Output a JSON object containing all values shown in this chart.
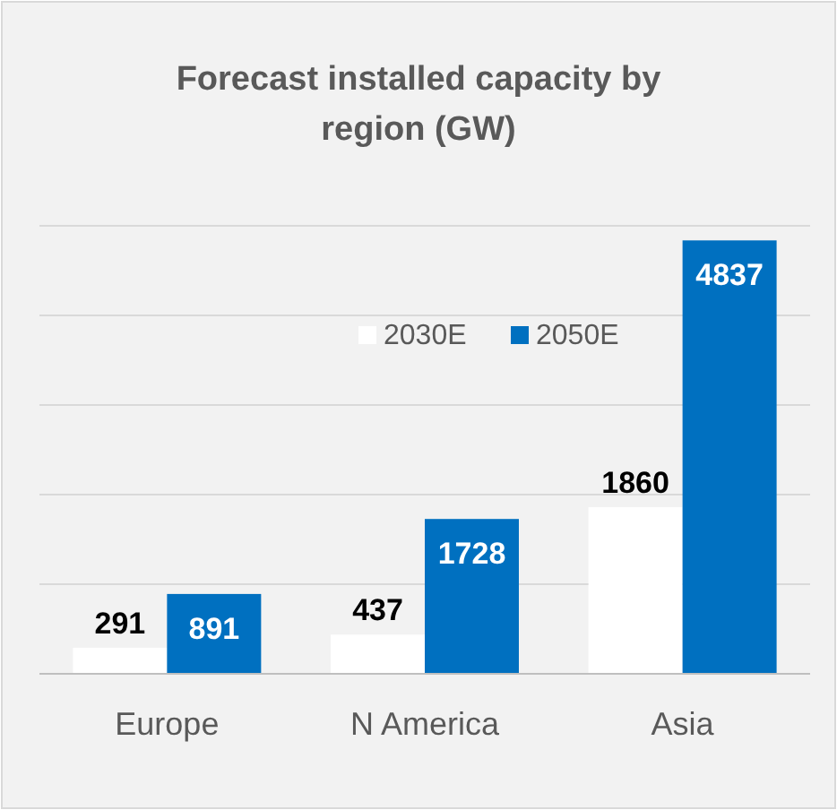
{
  "chart_data": {
    "type": "bar",
    "title": "Forecast installed capacity by region (GW)",
    "categories": [
      "Europe",
      "N America",
      "Asia"
    ],
    "series": [
      {
        "name": "2030E",
        "color": "#ffffff",
        "values": [
          291,
          437,
          1860
        ]
      },
      {
        "name": "2050E",
        "color": "#0070c0",
        "values": [
          891,
          1728,
          4837
        ]
      }
    ],
    "ylim": [
      0,
      5000
    ],
    "yticks": [
      {
        "value": 0,
        "label": null
      },
      {
        "value": 1000,
        "label": null
      },
      {
        "value": 2000,
        "label": null
      },
      {
        "value": 3000,
        "label": null
      },
      {
        "value": 4000,
        "label": null
      },
      {
        "value": 5000,
        "label": null
      }
    ],
    "tick_labels": "x",
    "grid": "y",
    "legend": "top",
    "data_labels": true
  }
}
